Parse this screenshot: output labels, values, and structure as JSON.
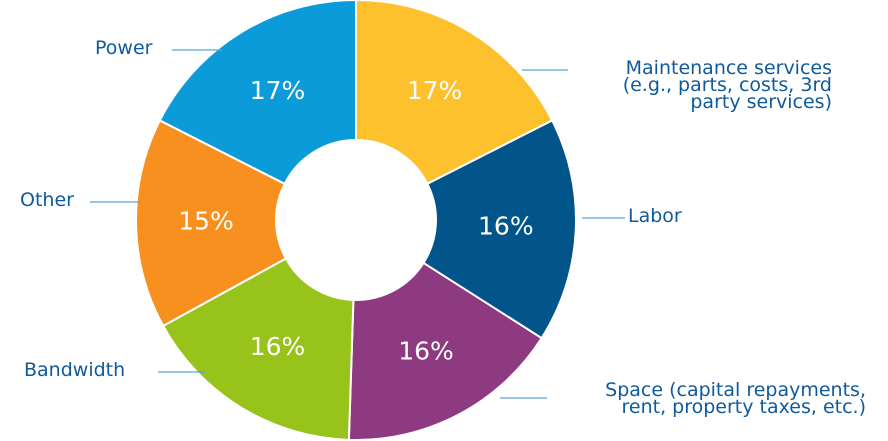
{
  "chart_data": {
    "type": "donut",
    "categories": [
      "Maintenance services\n(e.g., parts, costs, 3rd\nparty services)",
      "Labor",
      "Space (capital repayments,\nrent, property taxes, etc.)",
      "Bandwidth",
      "Other",
      "Power"
    ],
    "values": [
      17,
      16,
      16,
      16,
      15,
      17
    ],
    "value_labels": [
      "17%",
      "16%",
      "16%",
      "16%",
      "15%",
      "17%"
    ],
    "colors": [
      "#fdc12e",
      "#02558b",
      "#8e3a80",
      "#97c31b",
      "#f7901e",
      "#0b9bd9"
    ]
  }
}
